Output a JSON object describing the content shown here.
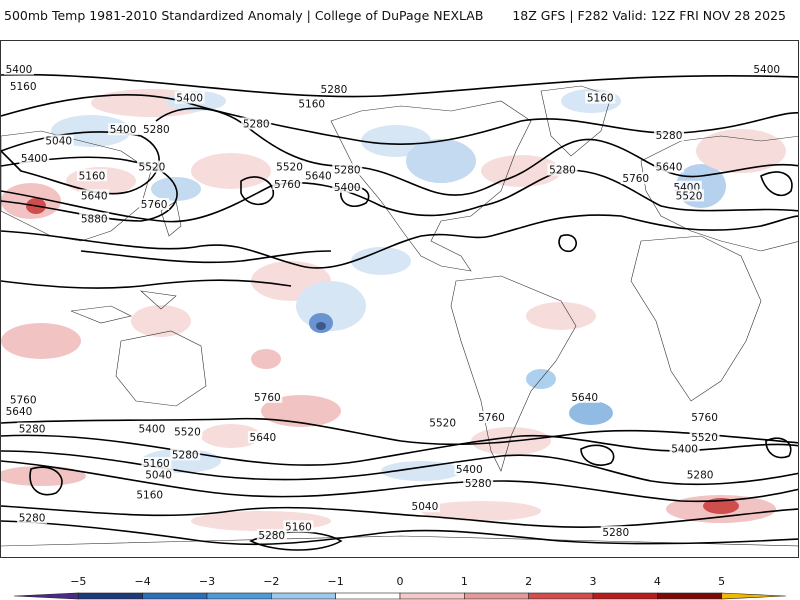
{
  "header": {
    "title": "500mb Temp 1981-2010 Standardized Anomaly | College of DuPage NEXLAB",
    "run_info": "18Z GFS | F282 Valid: 12Z FRI NOV 28 2025"
  },
  "map": {
    "projection": "cylindrical equidistant",
    "contour_field": "500mb height (dam)",
    "contour_labels": [
      {
        "text": "5400",
        "lon": -180,
        "lat": 80
      },
      {
        "text": "5400",
        "lon": 165,
        "lat": 80
      },
      {
        "text": "5160",
        "lon": -170,
        "lat": 74
      },
      {
        "text": "5400",
        "lon": -95,
        "lat": 70
      },
      {
        "text": "5280",
        "lon": -30,
        "lat": 73
      },
      {
        "text": "5160",
        "lon": -40,
        "lat": 68
      },
      {
        "text": "5160",
        "lon": 90,
        "lat": 70
      },
      {
        "text": "5280",
        "lon": -65,
        "lat": 61
      },
      {
        "text": "5400",
        "lon": -125,
        "lat": 59
      },
      {
        "text": "5280",
        "lon": -110,
        "lat": 59
      },
      {
        "text": "5280",
        "lon": 121,
        "lat": 57
      },
      {
        "text": "5040",
        "lon": -154,
        "lat": 55
      },
      {
        "text": "5280",
        "lon": 73,
        "lat": 45
      },
      {
        "text": "5400",
        "lon": -165,
        "lat": 49
      },
      {
        "text": "5520",
        "lon": -50,
        "lat": 46
      },
      {
        "text": "5640",
        "lon": -37,
        "lat": 43
      },
      {
        "text": "5280",
        "lon": -24,
        "lat": 45
      },
      {
        "text": "5400",
        "lon": -24,
        "lat": 39
      },
      {
        "text": "5160",
        "lon": -139,
        "lat": 43
      },
      {
        "text": "5520",
        "lon": -112,
        "lat": 46
      },
      {
        "text": "5760",
        "lon": -51,
        "lat": 40
      },
      {
        "text": "5640",
        "lon": 121,
        "lat": 46
      },
      {
        "text": "5760",
        "lon": 106,
        "lat": 42
      },
      {
        "text": "5400",
        "lon": 129,
        "lat": 39
      },
      {
        "text": "5520",
        "lon": 130,
        "lat": 36
      },
      {
        "text": "5640",
        "lon": -138,
        "lat": 36
      },
      {
        "text": "5760",
        "lon": -111,
        "lat": 33
      },
      {
        "text": "5880",
        "lon": -138,
        "lat": 28
      },
      {
        "text": "5760",
        "lon": -170,
        "lat": -35
      },
      {
        "text": "5640",
        "lon": -173,
        "lat": -39
      },
      {
        "text": "5760",
        "lon": -60,
        "lat": -34
      },
      {
        "text": "5640",
        "lon": 83,
        "lat": -34
      },
      {
        "text": "5760",
        "lon": 41,
        "lat": -41
      },
      {
        "text": "5760",
        "lon": 137,
        "lat": -41
      },
      {
        "text": "5280",
        "lon": -166,
        "lat": -45
      },
      {
        "text": "5400",
        "lon": -112,
        "lat": -45
      },
      {
        "text": "5520",
        "lon": -96,
        "lat": -46
      },
      {
        "text": "5640",
        "lon": -62,
        "lat": -48
      },
      {
        "text": "5520",
        "lon": 19,
        "lat": -43
      },
      {
        "text": "5280",
        "lon": -97,
        "lat": -54
      },
      {
        "text": "5160",
        "lon": -110,
        "lat": -57
      },
      {
        "text": "5040",
        "lon": -109,
        "lat": -61
      },
      {
        "text": "5520",
        "lon": 137,
        "lat": -48
      },
      {
        "text": "5400",
        "lon": 128,
        "lat": -52
      },
      {
        "text": "5400",
        "lon": 31,
        "lat": -59
      },
      {
        "text": "5280",
        "lon": 35,
        "lat": -64
      },
      {
        "text": "5280",
        "lon": 135,
        "lat": -61
      },
      {
        "text": "5160",
        "lon": -113,
        "lat": -68
      },
      {
        "text": "5040",
        "lon": 11,
        "lat": -72
      },
      {
        "text": "5280",
        "lon": -166,
        "lat": -76
      },
      {
        "text": "5160",
        "lon": -46,
        "lat": -79
      },
      {
        "text": "5280",
        "lon": -58,
        "lat": -82
      },
      {
        "text": "5280",
        "lon": 97,
        "lat": -81
      }
    ]
  },
  "colorbar": {
    "ticks": [
      "−5",
      "−4",
      "−3",
      "−2",
      "−1",
      "0",
      "1",
      "2",
      "3",
      "4",
      "5"
    ],
    "colors": [
      "#4a2a8a",
      "#1f3a78",
      "#2b6fb8",
      "#4f9ad8",
      "#9ec8ec",
      "#ffffff",
      "#f4c9c9",
      "#e59a9a",
      "#d44c4c",
      "#b81c1c",
      "#7a0a0a",
      "#f0b800"
    ]
  }
}
